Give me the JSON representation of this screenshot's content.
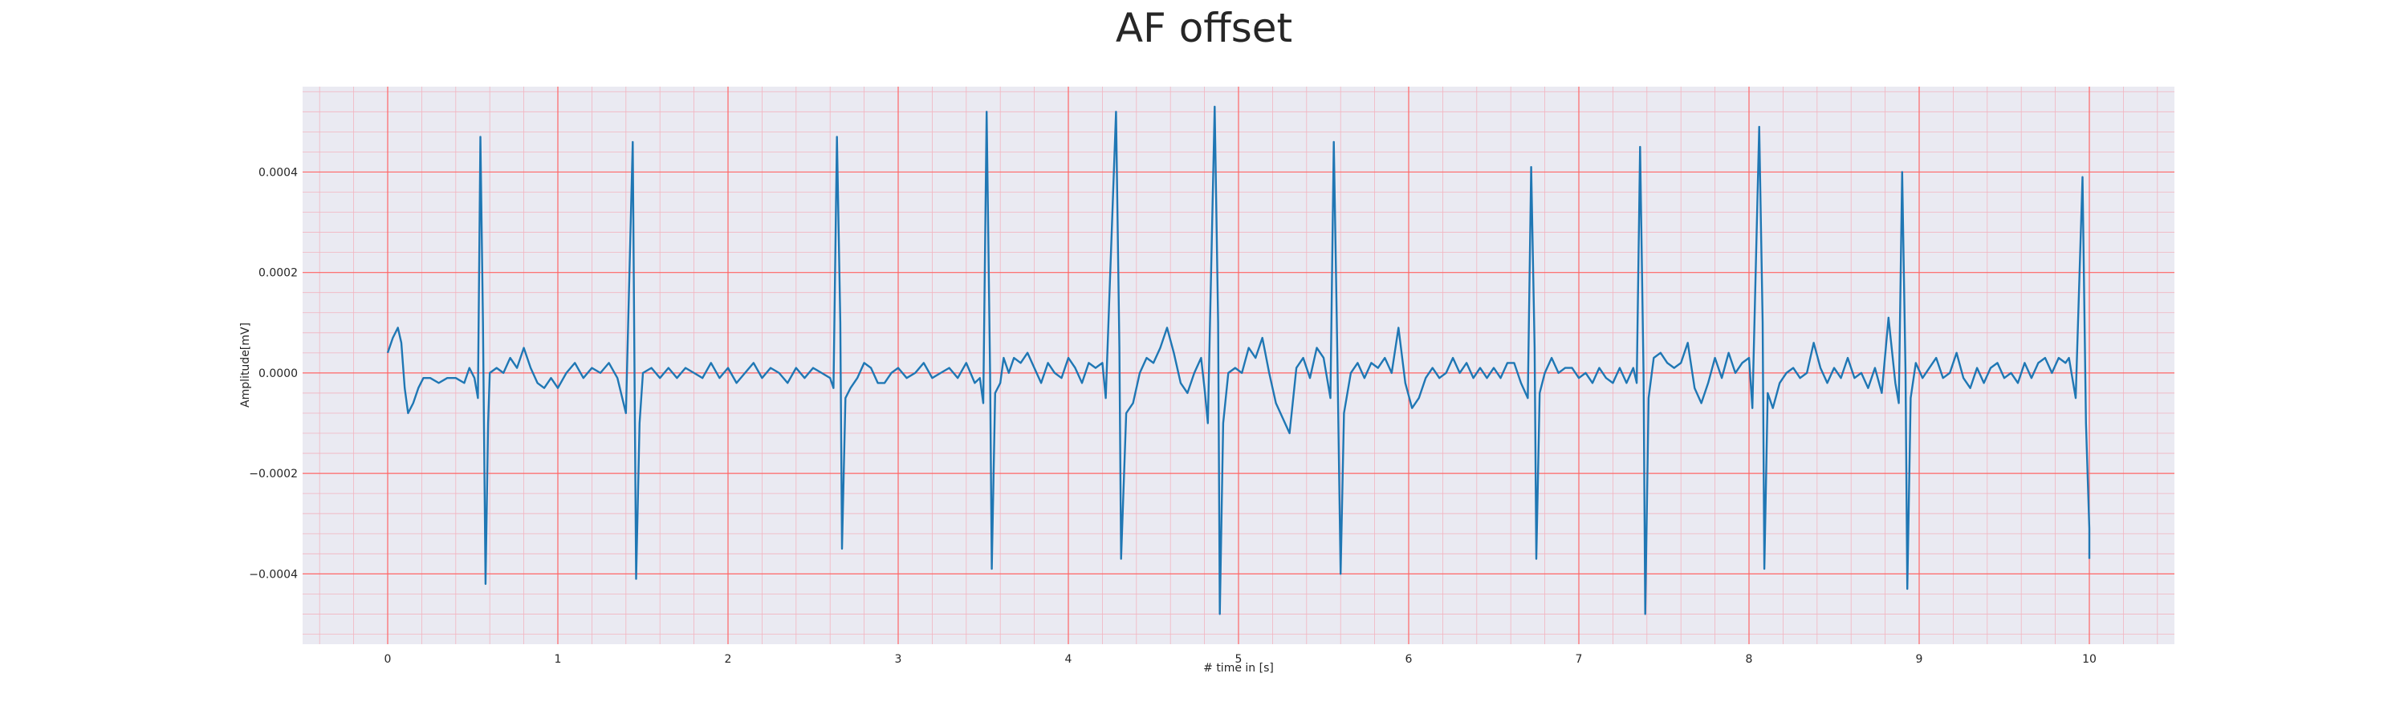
{
  "chart_data": {
    "type": "line",
    "title": "AF offset",
    "xlabel": "# time in [s]",
    "ylabel": "Amplitude[mV]",
    "xlim": [
      -0.5,
      10.5
    ],
    "ylim": [
      -0.00054,
      0.00057
    ],
    "x_ticks": [
      0,
      1,
      2,
      3,
      4,
      5,
      6,
      7,
      8,
      9,
      10
    ],
    "x_tick_labels": [
      "0",
      "1",
      "2",
      "3",
      "4",
      "5",
      "6",
      "7",
      "8",
      "9",
      "10"
    ],
    "y_ticks": [
      -0.0004,
      -0.0002,
      0.0,
      0.0002,
      0.0004
    ],
    "y_tick_labels": [
      "−0.0004",
      "−0.0002",
      "0.0000",
      "0.0002",
      "0.0004"
    ],
    "grid": "major and minor",
    "colors": {
      "line": "#1f77b4",
      "major_grid": "#ff6666",
      "minor_grid": "#f2b4c0",
      "plot_background": "#eaeaf2"
    },
    "series": [
      {
        "points": [
          [
            0.0,
            4e-05
          ],
          [
            0.03,
            7e-05
          ],
          [
            0.06,
            9e-05
          ],
          [
            0.08,
            6e-05
          ],
          [
            0.1,
            -3e-05
          ],
          [
            0.12,
            -8e-05
          ],
          [
            0.15,
            -6e-05
          ],
          [
            0.18,
            -3e-05
          ],
          [
            0.21,
            -1e-05
          ],
          [
            0.25,
            -1e-05
          ],
          [
            0.3,
            -2e-05
          ],
          [
            0.35,
            -1e-05
          ],
          [
            0.4,
            -1e-05
          ],
          [
            0.45,
            -2e-05
          ],
          [
            0.48,
            1e-05
          ],
          [
            0.51,
            -1e-05
          ],
          [
            0.53,
            -5e-05
          ],
          [
            0.545,
            0.00047
          ],
          [
            0.56,
            0.0001
          ],
          [
            0.575,
            -0.00042
          ],
          [
            0.59,
            -0.0001
          ],
          [
            0.6,
            0.0
          ],
          [
            0.64,
            1e-05
          ],
          [
            0.68,
            0.0
          ],
          [
            0.72,
            3e-05
          ],
          [
            0.76,
            1e-05
          ],
          [
            0.8,
            5e-05
          ],
          [
            0.84,
            1e-05
          ],
          [
            0.88,
            -2e-05
          ],
          [
            0.92,
            -3e-05
          ],
          [
            0.96,
            -1e-05
          ],
          [
            1.0,
            -3e-05
          ],
          [
            1.05,
            0.0
          ],
          [
            1.1,
            2e-05
          ],
          [
            1.15,
            -1e-05
          ],
          [
            1.2,
            1e-05
          ],
          [
            1.25,
            0.0
          ],
          [
            1.3,
            2e-05
          ],
          [
            1.35,
            -1e-05
          ],
          [
            1.4,
            -8e-05
          ],
          [
            1.44,
            0.00046
          ],
          [
            1.46,
            -0.00041
          ],
          [
            1.48,
            -0.0001
          ],
          [
            1.5,
            0.0
          ],
          [
            1.55,
            1e-05
          ],
          [
            1.6,
            -1e-05
          ],
          [
            1.65,
            1e-05
          ],
          [
            1.7,
            -1e-05
          ],
          [
            1.75,
            1e-05
          ],
          [
            1.8,
            0.0
          ],
          [
            1.85,
            -1e-05
          ],
          [
            1.9,
            2e-05
          ],
          [
            1.95,
            -1e-05
          ],
          [
            2.0,
            1e-05
          ],
          [
            2.05,
            -2e-05
          ],
          [
            2.1,
            0.0
          ],
          [
            2.15,
            2e-05
          ],
          [
            2.2,
            -1e-05
          ],
          [
            2.25,
            1e-05
          ],
          [
            2.3,
            0.0
          ],
          [
            2.35,
            -2e-05
          ],
          [
            2.4,
            1e-05
          ],
          [
            2.45,
            -1e-05
          ],
          [
            2.5,
            1e-05
          ],
          [
            2.55,
            0.0
          ],
          [
            2.6,
            -1e-05
          ],
          [
            2.62,
            -3e-05
          ],
          [
            2.64,
            0.00047
          ],
          [
            2.66,
            0.0001
          ],
          [
            2.67,
            -0.00035
          ],
          [
            2.69,
            -5e-05
          ],
          [
            2.72,
            -3e-05
          ],
          [
            2.76,
            -1e-05
          ],
          [
            2.8,
            2e-05
          ],
          [
            2.84,
            1e-05
          ],
          [
            2.88,
            -2e-05
          ],
          [
            2.92,
            -2e-05
          ],
          [
            2.96,
            0.0
          ],
          [
            3.0,
            1e-05
          ],
          [
            3.05,
            -1e-05
          ],
          [
            3.1,
            0.0
          ],
          [
            3.15,
            2e-05
          ],
          [
            3.2,
            -1e-05
          ],
          [
            3.25,
            0.0
          ],
          [
            3.3,
            1e-05
          ],
          [
            3.35,
            -1e-05
          ],
          [
            3.4,
            2e-05
          ],
          [
            3.45,
            -2e-05
          ],
          [
            3.48,
            -1e-05
          ],
          [
            3.5,
            -6e-05
          ],
          [
            3.52,
            0.00052
          ],
          [
            3.54,
            0.0
          ],
          [
            3.55,
            -0.00039
          ],
          [
            3.57,
            -4e-05
          ],
          [
            3.6,
            -2e-05
          ],
          [
            3.62,
            3e-05
          ],
          [
            3.65,
            0.0
          ],
          [
            3.68,
            3e-05
          ],
          [
            3.72,
            2e-05
          ],
          [
            3.76,
            4e-05
          ],
          [
            3.8,
            1e-05
          ],
          [
            3.84,
            -2e-05
          ],
          [
            3.88,
            2e-05
          ],
          [
            3.92,
            0.0
          ],
          [
            3.96,
            -1e-05
          ],
          [
            4.0,
            3e-05
          ],
          [
            4.04,
            1e-05
          ],
          [
            4.08,
            -2e-05
          ],
          [
            4.12,
            2e-05
          ],
          [
            4.16,
            1e-05
          ],
          [
            4.2,
            2e-05
          ],
          [
            4.22,
            -5e-05
          ],
          [
            4.28,
            0.00052
          ],
          [
            4.3,
            5e-05
          ],
          [
            4.31,
            -0.00037
          ],
          [
            4.34,
            -8e-05
          ],
          [
            4.38,
            -6e-05
          ],
          [
            4.42,
            0.0
          ],
          [
            4.46,
            3e-05
          ],
          [
            4.5,
            2e-05
          ],
          [
            4.54,
            5e-05
          ],
          [
            4.58,
            9e-05
          ],
          [
            4.62,
            4e-05
          ],
          [
            4.66,
            -2e-05
          ],
          [
            4.7,
            -4e-05
          ],
          [
            4.74,
            0.0
          ],
          [
            4.78,
            3e-05
          ],
          [
            4.8,
            -3e-05
          ],
          [
            4.82,
            -0.0001
          ],
          [
            4.86,
            0.00053
          ],
          [
            4.88,
            0.0001
          ],
          [
            4.89,
            -0.00048
          ],
          [
            4.91,
            -0.0001
          ],
          [
            4.94,
            0.0
          ],
          [
            4.98,
            1e-05
          ],
          [
            5.02,
            0.0
          ],
          [
            5.06,
            5e-05
          ],
          [
            5.1,
            3e-05
          ],
          [
            5.14,
            7e-05
          ],
          [
            5.18,
            0.0
          ],
          [
            5.22,
            -6e-05
          ],
          [
            5.26,
            -9e-05
          ],
          [
            5.3,
            -0.00012
          ],
          [
            5.34,
            1e-05
          ],
          [
            5.38,
            3e-05
          ],
          [
            5.42,
            -1e-05
          ],
          [
            5.46,
            5e-05
          ],
          [
            5.5,
            3e-05
          ],
          [
            5.54,
            -5e-05
          ],
          [
            5.56,
            0.00046
          ],
          [
            5.58,
            5e-05
          ],
          [
            5.6,
            -0.0004
          ],
          [
            5.62,
            -8e-05
          ],
          [
            5.66,
            0.0
          ],
          [
            5.7,
            2e-05
          ],
          [
            5.74,
            -1e-05
          ],
          [
            5.78,
            2e-05
          ],
          [
            5.82,
            1e-05
          ],
          [
            5.86,
            3e-05
          ],
          [
            5.9,
            0.0
          ],
          [
            5.94,
            9e-05
          ],
          [
            5.98,
            -2e-05
          ],
          [
            6.02,
            -7e-05
          ],
          [
            6.06,
            -5e-05
          ],
          [
            6.1,
            -1e-05
          ],
          [
            6.14,
            1e-05
          ],
          [
            6.18,
            -1e-05
          ],
          [
            6.22,
            0.0
          ],
          [
            6.26,
            3e-05
          ],
          [
            6.3,
            0.0
          ],
          [
            6.34,
            2e-05
          ],
          [
            6.38,
            -1e-05
          ],
          [
            6.42,
            1e-05
          ],
          [
            6.46,
            -1e-05
          ],
          [
            6.5,
            1e-05
          ],
          [
            6.54,
            -1e-05
          ],
          [
            6.58,
            2e-05
          ],
          [
            6.62,
            2e-05
          ],
          [
            6.66,
            -2e-05
          ],
          [
            6.7,
            -5e-05
          ],
          [
            6.72,
            0.00041
          ],
          [
            6.74,
            5e-05
          ],
          [
            6.75,
            -0.00037
          ],
          [
            6.77,
            -4e-05
          ],
          [
            6.8,
            0.0
          ],
          [
            6.84,
            3e-05
          ],
          [
            6.88,
            0.0
          ],
          [
            6.92,
            1e-05
          ],
          [
            6.96,
            1e-05
          ],
          [
            7.0,
            -1e-05
          ],
          [
            7.04,
            0.0
          ],
          [
            7.08,
            -2e-05
          ],
          [
            7.12,
            1e-05
          ],
          [
            7.16,
            -1e-05
          ],
          [
            7.2,
            -2e-05
          ],
          [
            7.24,
            1e-05
          ],
          [
            7.28,
            -2e-05
          ],
          [
            7.32,
            1e-05
          ],
          [
            7.34,
            -2e-05
          ],
          [
            7.36,
            0.00045
          ],
          [
            7.38,
            0.0
          ],
          [
            7.39,
            -0.00048
          ],
          [
            7.41,
            -5e-05
          ],
          [
            7.44,
            3e-05
          ],
          [
            7.48,
            4e-05
          ],
          [
            7.52,
            2e-05
          ],
          [
            7.56,
            1e-05
          ],
          [
            7.6,
            2e-05
          ],
          [
            7.64,
            6e-05
          ],
          [
            7.68,
            -3e-05
          ],
          [
            7.72,
            -6e-05
          ],
          [
            7.76,
            -2e-05
          ],
          [
            7.8,
            3e-05
          ],
          [
            7.84,
            -1e-05
          ],
          [
            7.88,
            4e-05
          ],
          [
            7.92,
            0.0
          ],
          [
            7.96,
            2e-05
          ],
          [
            8.0,
            3e-05
          ],
          [
            8.02,
            -7e-05
          ],
          [
            8.06,
            0.00049
          ],
          [
            8.08,
            0.0001
          ],
          [
            8.09,
            -0.00039
          ],
          [
            8.11,
            -4e-05
          ],
          [
            8.14,
            -7e-05
          ],
          [
            8.18,
            -2e-05
          ],
          [
            8.22,
            0.0
          ],
          [
            8.26,
            1e-05
          ],
          [
            8.3,
            -1e-05
          ],
          [
            8.34,
            0.0
          ],
          [
            8.38,
            6e-05
          ],
          [
            8.42,
            1e-05
          ],
          [
            8.46,
            -2e-05
          ],
          [
            8.5,
            1e-05
          ],
          [
            8.54,
            -1e-05
          ],
          [
            8.58,
            3e-05
          ],
          [
            8.62,
            -1e-05
          ],
          [
            8.66,
            0.0
          ],
          [
            8.7,
            -3e-05
          ],
          [
            8.74,
            1e-05
          ],
          [
            8.78,
            -4e-05
          ],
          [
            8.82,
            0.00011
          ],
          [
            8.86,
            -2e-05
          ],
          [
            8.88,
            -6e-05
          ],
          [
            8.9,
            0.0004
          ],
          [
            8.92,
            0.0
          ],
          [
            8.93,
            -0.00043
          ],
          [
            8.95,
            -5e-05
          ],
          [
            8.98,
            2e-05
          ],
          [
            9.02,
            -1e-05
          ],
          [
            9.06,
            1e-05
          ],
          [
            9.1,
            3e-05
          ],
          [
            9.14,
            -1e-05
          ],
          [
            9.18,
            0.0
          ],
          [
            9.22,
            4e-05
          ],
          [
            9.26,
            -1e-05
          ],
          [
            9.3,
            -3e-05
          ],
          [
            9.34,
            1e-05
          ],
          [
            9.38,
            -2e-05
          ],
          [
            9.42,
            1e-05
          ],
          [
            9.46,
            2e-05
          ],
          [
            9.5,
            -1e-05
          ],
          [
            9.54,
            0.0
          ],
          [
            9.58,
            -2e-05
          ],
          [
            9.62,
            2e-05
          ],
          [
            9.66,
            -1e-05
          ],
          [
            9.7,
            2e-05
          ],
          [
            9.74,
            3e-05
          ],
          [
            9.78,
            0.0
          ],
          [
            9.82,
            3e-05
          ],
          [
            9.86,
            2e-05
          ],
          [
            9.88,
            3e-05
          ],
          [
            9.92,
            -5e-05
          ],
          [
            9.96,
            0.00039
          ],
          [
            9.98,
            -0.0001
          ],
          [
            10.0,
            -0.00031
          ],
          [
            10.0,
            -0.00037
          ]
        ]
      }
    ]
  }
}
